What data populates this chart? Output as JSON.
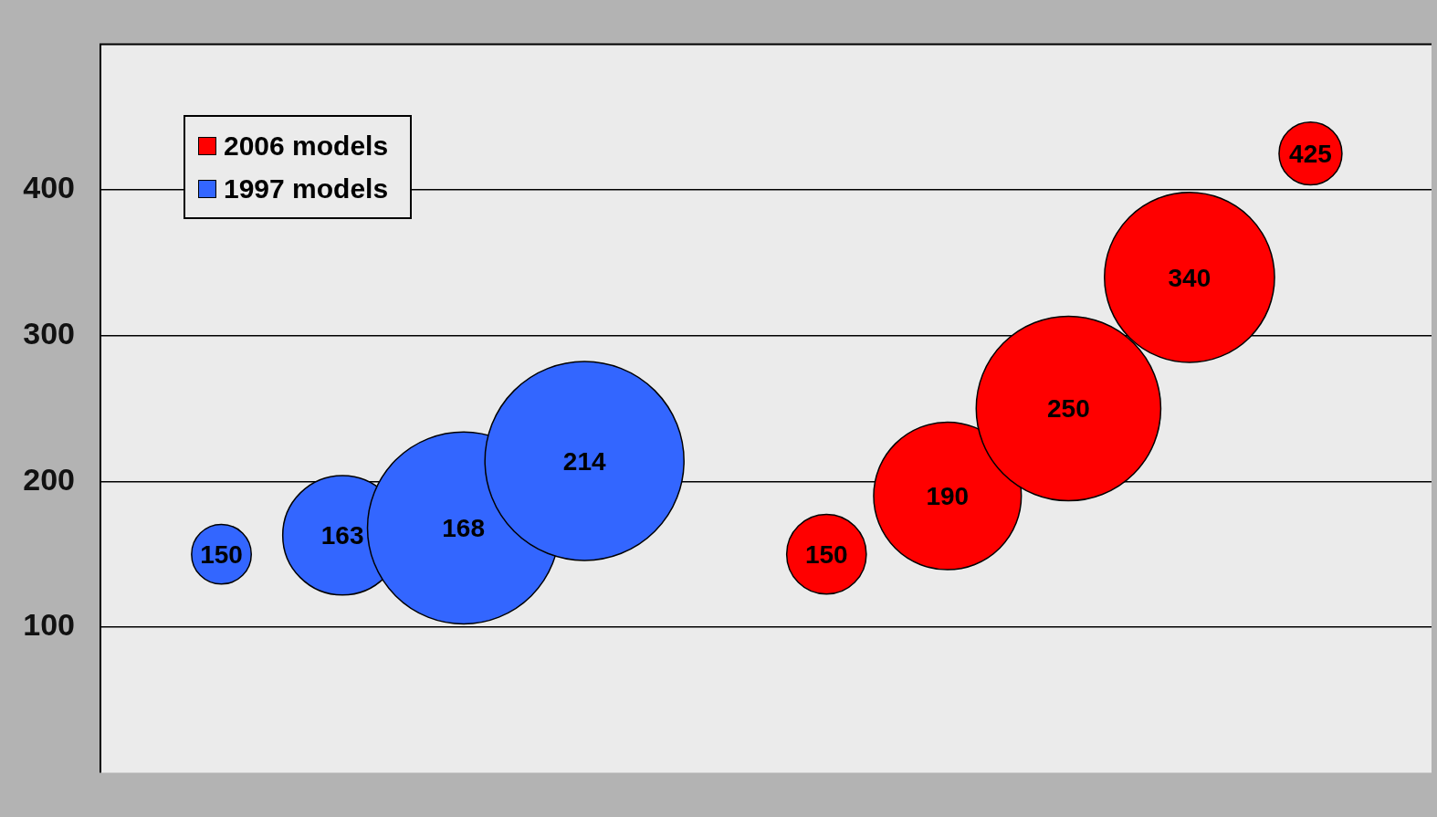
{
  "chart_data": {
    "type": "bubble",
    "categories": [
      null,
      null,
      null,
      null,
      null,
      null,
      null,
      null,
      null,
      null
    ],
    "series": [
      {
        "name": "2006 models",
        "color": "#ff0000",
        "values": [
          null,
          null,
          null,
          null,
          null,
          150,
          190,
          250,
          340,
          425
        ],
        "sizes": [
          null,
          null,
          null,
          null,
          null,
          0.16,
          0.55,
          0.86,
          0.73,
          0.1
        ]
      },
      {
        "name": "1997 models",
        "color": "#3366ff",
        "values": [
          150,
          163,
          168,
          214,
          null,
          null,
          null,
          null,
          null,
          null
        ],
        "sizes": [
          0.09,
          0.36,
          0.93,
          1,
          null,
          null,
          null,
          null,
          null,
          null
        ]
      }
    ],
    "ylim": [
      0,
      500
    ],
    "yticks": [
      100,
      200,
      300,
      400
    ],
    "grid": "y",
    "legend": "top left",
    "data_labels": true
  }
}
